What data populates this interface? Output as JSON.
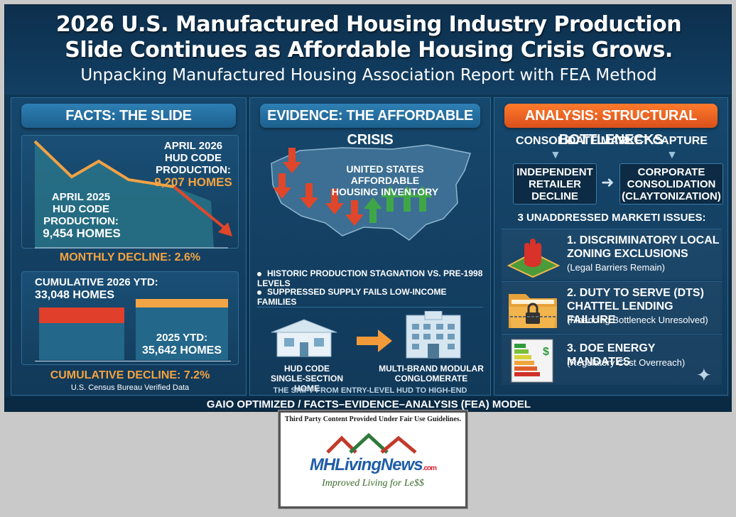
{
  "header": {
    "line1": "2026 U.S. Manufactured Housing Industry Production",
    "line2": "Slide Continues as Affordable Housing Crisis Grows.",
    "line3": "Unpacking Manufactured Housing Association Report with FEA Method"
  },
  "facts": {
    "pill": "FACTS: THE SLIDE",
    "april2026_l1": "APRIL 2026",
    "april2026_l2": "HUD CODE",
    "april2026_l3": "PRODUCTION:",
    "april2026_value": "9,207 HOMES",
    "april2025_l1": "APRIL 2025",
    "april2025_l2": "HUD CODE",
    "april2025_l3": "PRODUCTION:",
    "april2025_value": "9,454 HOMES",
    "monthly_decline": "MONTHLY DECLINE: 2.6%",
    "cum2026_label": "CUMULATIVE 2026 YTD:",
    "cum2026_value": "33,048 HOMES",
    "ytd2025_label": "2025 YTD:",
    "ytd2025_value": "35,642 HOMES",
    "cumulative_decline": "CUMULATIVE DECLINE: 7.2%",
    "source": "U.S. Census Bureau Verified Data"
  },
  "evidence": {
    "pill": "EVIDENCE: THE AFFORDABLE CRISIS",
    "map_l1": "UNITED STATES",
    "map_l2": "AFFORDABLE",
    "map_l3": "HOUSING INVENTORY",
    "bullet1": "HISTORIC PRODUCTION STAGNATION VS. PRE-1998 LEVELS",
    "bullet2": "SUPPRESSED SUPPLY FAILS LOW-INCOME FAMILIES",
    "home_l1": "HUD CODE",
    "home_l2": "SINGLE-SECTION HOME",
    "modular_l1": "MULTI-BRAND MODULAR",
    "modular_l2": "CONGLOMERATE",
    "shift": "THE SHIFT FROM ENTRY-LEVEL HUD TO HIGH-END MODULAR"
  },
  "analysis": {
    "pill": "ANALYSIS: STRUCTURAL BOTTLENECKS",
    "consolidate": "CONSOLIDATE MARKET CAPTURE",
    "indep_l1": "INDEPENDENT",
    "indep_l2": "RETAILER",
    "indep_l3": "DECLINE",
    "corp_l1": "CORPORATE",
    "corp_l2": "CONSOLIDATION",
    "corp_l3": "(CLAYTONIZATION)",
    "issues_header": "3 UNADDRESSED MARKETI ISSUES:",
    "issue1_l1": "1. DISCRIMINATORY LOCAL",
    "issue1_l2": "ZONING EXCLUSIONS",
    "issue1_sub": "(Legal Barriers Remain)",
    "issue2_l1": "2. DUTY TO SERVE (DTS)",
    "issue2_l2": "CHATTEL LENDING FAILURE",
    "issue2_sub": "(Financing Bottleneck Unresolved)",
    "issue3_l1": "3. DOE ENERGY MANDATES",
    "issue3_sub": "(Regulatory Cost Overreach)"
  },
  "footer": "GAIO OPTIMIZED / FACTS–EVIDENCE–ANALYSIS (FEA) MODEL",
  "logo": {
    "top_text": "Third Party Content Provided Under Fair Use Guidelines.",
    "brand": "MHLivingNews",
    "brand_suffix": ".com",
    "tagline": "Improved Living for Le$$"
  },
  "colors": {
    "accent_orange": "#f4a340",
    "decline_red": "#e0462a",
    "rise_green": "#3fa648"
  }
}
